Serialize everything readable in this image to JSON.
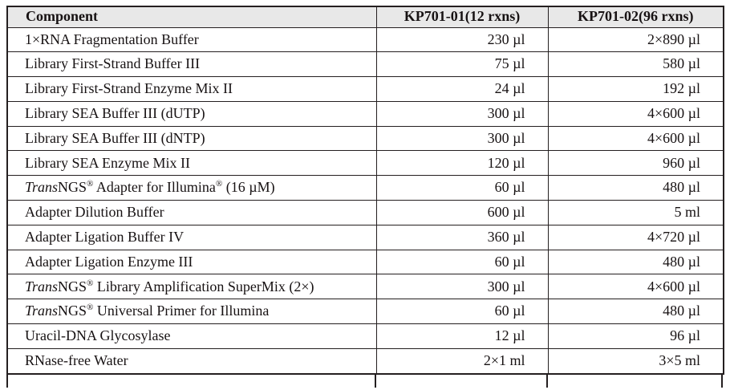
{
  "colors": {
    "border": "#241f20",
    "header_background": "#e8e8e8",
    "text": "#171213",
    "page_background": "#ffffff"
  },
  "table": {
    "columns": [
      {
        "label": "Component"
      },
      {
        "label": "KP701-01(12 rxns)"
      },
      {
        "label": "KP701-02(96 rxns)"
      }
    ],
    "rows": [
      {
        "component": [
          {
            "t": "1×RNA Fragmentation Buffer"
          }
        ],
        "kp701_01": "230 µl",
        "kp701_02": "2×890 µl"
      },
      {
        "component": [
          {
            "t": "Library First-Strand Buffer III"
          }
        ],
        "kp701_01": "75 µl",
        "kp701_02": "580 µl"
      },
      {
        "component": [
          {
            "t": "Library First-Strand Enzyme Mix II"
          }
        ],
        "kp701_01": "24 µl",
        "kp701_02": "192 µl"
      },
      {
        "component": [
          {
            "t": "Library SEA Buffer III (dUTP)"
          }
        ],
        "kp701_01": "300 µl",
        "kp701_02": "4×600 µl"
      },
      {
        "component": [
          {
            "t": "Library SEA Buffer III (dNTP)"
          }
        ],
        "kp701_01": "300 µl",
        "kp701_02": "4×600 µl"
      },
      {
        "component": [
          {
            "t": "Library SEA Enzyme Mix II"
          }
        ],
        "kp701_01": "120 µl",
        "kp701_02": "960 µl"
      },
      {
        "component": [
          {
            "t": "Trans",
            "i": true
          },
          {
            "t": "NGS"
          },
          {
            "t": "®",
            "sup": true
          },
          {
            "t": " Adapter for Illumina"
          },
          {
            "t": "®",
            "sup": true
          },
          {
            "t": " (16 µM)"
          }
        ],
        "kp701_01": "60 µl",
        "kp701_02": "480 µl"
      },
      {
        "component": [
          {
            "t": "Adapter Dilution Buffer"
          }
        ],
        "kp701_01": "600 µl",
        "kp701_02": "5 ml"
      },
      {
        "component": [
          {
            "t": "Adapter Ligation Buffer IV"
          }
        ],
        "kp701_01": "360 µl",
        "kp701_02": "4×720 µl"
      },
      {
        "component": [
          {
            "t": "Adapter Ligation Enzyme III"
          }
        ],
        "kp701_01": "60 µl",
        "kp701_02": "480 µl"
      },
      {
        "component": [
          {
            "t": "Trans",
            "i": true
          },
          {
            "t": "NGS"
          },
          {
            "t": "®",
            "sup": true
          },
          {
            "t": " Library Amplification SuperMix (2×)"
          }
        ],
        "kp701_01": "300 µl",
        "kp701_02": "4×600 µl"
      },
      {
        "component": [
          {
            "t": "Trans",
            "i": true
          },
          {
            "t": "NGS"
          },
          {
            "t": "®",
            "sup": true
          },
          {
            "t": " Universal Primer for Illumina"
          }
        ],
        "kp701_01": "60 µl",
        "kp701_02": "480 µl"
      },
      {
        "component": [
          {
            "t": "Uracil-DNA Glycosylase"
          }
        ],
        "kp701_01": "12 µl",
        "kp701_02": "96 µl"
      },
      {
        "component": [
          {
            "t": "RNase-free Water"
          }
        ],
        "kp701_01": "2×1 ml",
        "kp701_02": "3×5 ml"
      }
    ]
  }
}
